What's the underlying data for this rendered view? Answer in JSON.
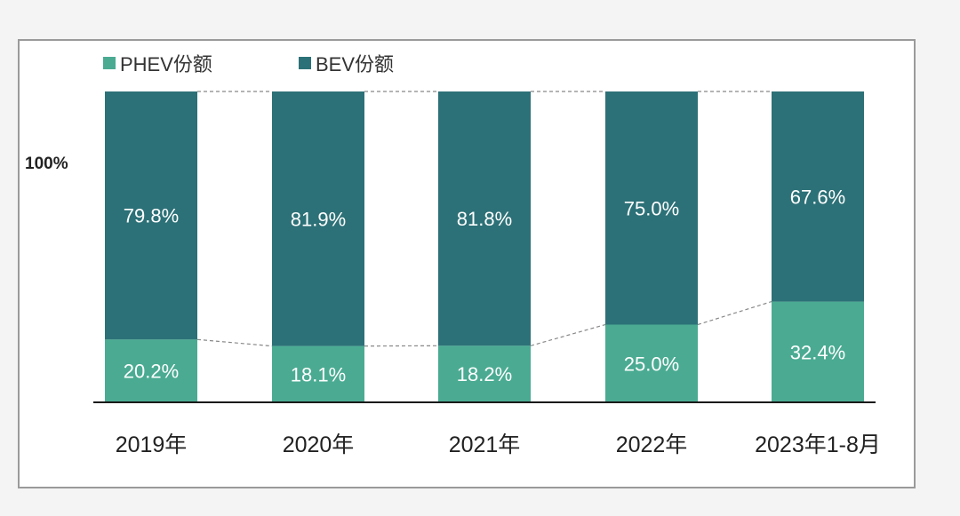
{
  "chart_data": {
    "type": "bar",
    "stacked": true,
    "categories": [
      "2019年",
      "2020年",
      "2021年",
      "2022年",
      "2023年1-8月"
    ],
    "series": [
      {
        "name": "PHEV份额",
        "values": [
          20.2,
          18.1,
          18.2,
          25.0,
          32.4
        ],
        "labels": [
          "20.2%",
          "18.1%",
          "18.2%",
          "25.0%",
          "32.4%"
        ],
        "color": "#4aab92"
      },
      {
        "name": "BEV份额",
        "values": [
          79.8,
          81.9,
          81.8,
          75.0,
          67.6
        ],
        "labels": [
          "79.8%",
          "81.9%",
          "81.8%",
          "75.0%",
          "67.6%"
        ],
        "color": "#2c7177"
      }
    ],
    "ytick_label": "100%",
    "ylim": [
      0,
      100
    ],
    "legend": "top-left",
    "grid": false,
    "series_lines": true
  }
}
